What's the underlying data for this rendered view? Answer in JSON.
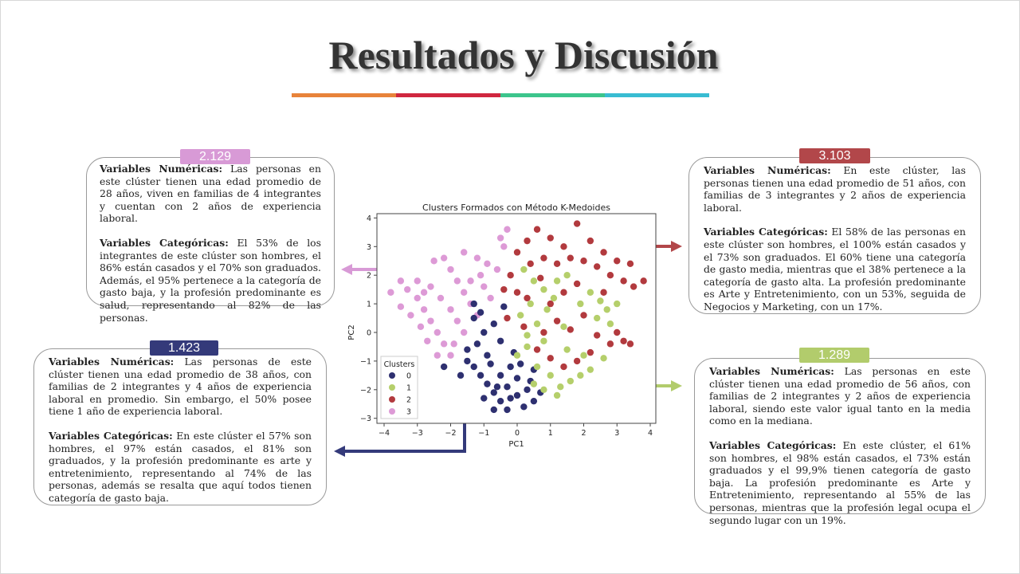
{
  "title": "Resultados y Discusión",
  "underline_colors": [
    "#e8833a",
    "#d0273f",
    "#3cc58c",
    "#38bcd2"
  ],
  "clusters": [
    {
      "id": "pink",
      "badge": "2.129",
      "color": "#d89ad6",
      "num_label": "Variables Numéricas:",
      "num_text": " Las personas en este clúster tienen una edad promedio de 28 años, viven en familias de 4 integrantes y cuentan con 2 años de experiencia laboral.",
      "cat_label": "Variables Categóricas:",
      "cat_text": " El 53% de los integrantes de este clúster son hombres, el 86% están casados y el 70% son graduados. Además, el 95% pertenece a la categoría de gasto baja, y la profesión predominante es salud, representando al 82% de las personas."
    },
    {
      "id": "navy",
      "badge": "1.423",
      "color": "#343a7a",
      "num_label": "Variables Numéricas:",
      "num_text": " Las personas de este clúster tienen una edad promedio de 38 años, con familias de 2 integrantes y 4 años de experiencia laboral en promedio. Sin embargo, el 50% posee tiene 1 año de experiencia laboral.",
      "cat_label": "Variables Categóricas:",
      "cat_text": " En este clúster el 57% son hombres, el 97% están casados, el 81% son graduados, y la profesión predominante es arte y entretenimiento, representando al 74% de las personas, además se resalta que aquí todos tienen categoría de gasto baja."
    },
    {
      "id": "red",
      "badge": "3.103",
      "color": "#b2474a",
      "num_label": "Variables Numéricas:",
      "num_text": " En este clúster, las personas tienen una edad promedio de 51 años, con familias de 3 integrantes y 2 años de experiencia laboral.",
      "cat_label": "Variables Categóricas:",
      "cat_text": " El 58% de las personas en este clúster son hombres, el 100% están casados y el 73% son graduados. El 60% tiene una categoría de gasto media, mientras que el 38% pertenece a la categoría de gasto alta. La profesión predominante es Arte y Entretenimiento, con un 53%, seguida de Negocios y Marketing, con un 17%."
    },
    {
      "id": "green",
      "badge": "1.289",
      "color": "#b2cc6c",
      "num_label": "Variables Numéricas:",
      "num_text": " Las personas en este clúster tienen una edad promedio de 56 años, con familias de 2 integrantes y 2 años de experiencia laboral, siendo este valor igual tanto en la media como en la mediana.",
      "cat_label": "Variables Categóricas:",
      "cat_text": " En este clúster, el 61% son hombres, el 98% están casados, el 73% están graduados y el 99,9% tienen categoría de gasto baja. La profesión predominante es Arte y Entretenimiento, representando al 55% de las personas, mientras que la profesión legal ocupa el segundo lugar con un 19%."
    }
  ],
  "chart_data": {
    "type": "scatter",
    "title": "Clusters Formados con Método K-Medoides",
    "xlabel": "PC1",
    "ylabel": "PC2",
    "xlim": [
      -4.2,
      4.2
    ],
    "ylim": [
      -3.3,
      4.2
    ],
    "xticks": [
      -4,
      -3,
      -2,
      -1,
      0,
      1,
      2,
      3,
      4
    ],
    "yticks": [
      -3,
      -2,
      -1,
      0,
      1,
      2,
      3,
      4
    ],
    "legend": {
      "title": "Clusters",
      "placement": "lower-left",
      "labels": [
        "0",
        "1",
        "2",
        "3"
      ]
    },
    "series": [
      {
        "name": "3",
        "color": "#dd9ad6",
        "points": [
          [
            -3.8,
            1.4
          ],
          [
            -3.5,
            1.8
          ],
          [
            -3.3,
            1.5
          ],
          [
            -3.0,
            1.2
          ],
          [
            -2.8,
            0.8
          ],
          [
            -2.6,
            0.4
          ],
          [
            -2.4,
            0
          ],
          [
            -2.2,
            -0.4
          ],
          [
            -2.0,
            -0.8
          ],
          [
            -2.2,
            2.6
          ],
          [
            -2.5,
            2.5
          ],
          [
            -2.0,
            2.2
          ],
          [
            -1.8,
            1.8
          ],
          [
            -1.6,
            1.4
          ],
          [
            -1.4,
            1.0
          ],
          [
            -1.2,
            0.6
          ],
          [
            -1.6,
            2.8
          ],
          [
            -1.2,
            2.6
          ],
          [
            -0.9,
            2.4
          ],
          [
            -0.6,
            2.2
          ],
          [
            -0.4,
            3.0
          ],
          [
            -0.3,
            3.6
          ],
          [
            -0.5,
            3.3
          ],
          [
            -3.2,
            0.6
          ],
          [
            -2.9,
            0.2
          ],
          [
            -2.7,
            -0.3
          ],
          [
            -3.0,
            1.8
          ],
          [
            -2.6,
            1.6
          ],
          [
            -2.3,
            1.2
          ],
          [
            -2.0,
            0.8
          ],
          [
            -1.8,
            0.4
          ],
          [
            -1.6,
            0.0
          ],
          [
            -1.9,
            -0.4
          ],
          [
            -2.4,
            -0.8
          ],
          [
            -1.4,
            1.8
          ],
          [
            -1.0,
            1.6
          ],
          [
            -0.8,
            1.2
          ],
          [
            -2.8,
            1.4
          ],
          [
            -3.5,
            0.9
          ],
          [
            -1.1,
            2.0
          ]
        ]
      },
      {
        "name": "0",
        "color": "#2e3070",
        "points": [
          [
            -2.2,
            -1.2
          ],
          [
            -1.7,
            -1.5
          ],
          [
            -1.5,
            -1.0
          ],
          [
            -1.3,
            -1.2
          ],
          [
            -1.1,
            -1.5
          ],
          [
            -0.9,
            -1.8
          ],
          [
            -0.7,
            -2.1
          ],
          [
            -0.5,
            -2.4
          ],
          [
            -0.3,
            -2.7
          ],
          [
            -0.7,
            -2.7
          ],
          [
            -1.0,
            -2.3
          ],
          [
            -0.3,
            -1.9
          ],
          [
            0,
            -2.2
          ],
          [
            0.3,
            -2.0
          ],
          [
            0.5,
            -2.4
          ],
          [
            0.2,
            -2.6
          ],
          [
            -0.5,
            -1.5
          ],
          [
            -0.2,
            -1.2
          ],
          [
            0,
            -1.6
          ],
          [
            -0.9,
            -0.8
          ],
          [
            -1.2,
            -0.4
          ],
          [
            -1.0,
            0
          ],
          [
            -1.3,
            0.5
          ],
          [
            -0.7,
            0.3
          ],
          [
            -0.5,
            -0.3
          ],
          [
            -0.4,
            0.9
          ],
          [
            -1.3,
            1.0
          ],
          [
            -0.8,
            -1.1
          ],
          [
            -1.5,
            -0.6
          ],
          [
            0.4,
            -1.7
          ],
          [
            0.7,
            -2.1
          ],
          [
            -0.1,
            -0.7
          ],
          [
            0.1,
            -1.1
          ],
          [
            -0.6,
            -1.9
          ],
          [
            -0.2,
            -2.3
          ],
          [
            0.5,
            -1.3
          ],
          [
            -1.1,
            0.7
          ]
        ]
      },
      {
        "name": "2",
        "color": "#b23a3e",
        "points": [
          [
            0,
            2.8
          ],
          [
            0.3,
            3.2
          ],
          [
            0.6,
            3.6
          ],
          [
            1.0,
            3.3
          ],
          [
            1.4,
            3.0
          ],
          [
            1.8,
            3.8
          ],
          [
            2.2,
            3.2
          ],
          [
            2.6,
            2.8
          ],
          [
            3.0,
            2.5
          ],
          [
            3.4,
            2.4
          ],
          [
            3.8,
            1.8
          ],
          [
            3.5,
            1.6
          ],
          [
            3.2,
            1.8
          ],
          [
            2.8,
            2.0
          ],
          [
            2.4,
            2.3
          ],
          [
            2.0,
            2.5
          ],
          [
            1.6,
            2.6
          ],
          [
            1.2,
            2.4
          ],
          [
            0.8,
            2.6
          ],
          [
            0.4,
            2.4
          ],
          [
            -0.2,
            2.0
          ],
          [
            0,
            1.4
          ],
          [
            0.3,
            1.2
          ],
          [
            0.7,
            1.9
          ],
          [
            1.0,
            1.0
          ],
          [
            1.4,
            1.4
          ],
          [
            1.8,
            1.7
          ],
          [
            2.0,
            0.6
          ],
          [
            2.4,
            -0.1
          ],
          [
            2.8,
            -0.4
          ],
          [
            3.2,
            -0.3
          ],
          [
            3.4,
            -0.4
          ],
          [
            2.2,
            -0.7
          ],
          [
            1.8,
            -1.0
          ],
          [
            1.4,
            -1.2
          ],
          [
            1.0,
            -0.9
          ],
          [
            0.6,
            -0.6
          ],
          [
            0.2,
            0.2
          ],
          [
            -0.3,
            0.5
          ],
          [
            -0.4,
            1.5
          ],
          [
            1.2,
            0.4
          ],
          [
            1.6,
            0.1
          ],
          [
            0.8,
            0.0
          ],
          [
            2.6,
            1.4
          ],
          [
            3.0,
            0.0
          ]
        ]
      },
      {
        "name": "1",
        "color": "#b5cf6b",
        "points": [
          [
            0,
            -0.8
          ],
          [
            0.3,
            -0.5
          ],
          [
            0.6,
            -1.2
          ],
          [
            1.0,
            -1.5
          ],
          [
            1.3,
            -1.9
          ],
          [
            1.6,
            -1.7
          ],
          [
            1.9,
            -1.5
          ],
          [
            2.2,
            -1.3
          ],
          [
            0.8,
            -2.0
          ],
          [
            1.2,
            -2.2
          ],
          [
            0.5,
            -1.8
          ],
          [
            2.4,
            0.5
          ],
          [
            2.7,
            0.8
          ],
          [
            3.0,
            1.0
          ],
          [
            2.5,
            1.1
          ],
          [
            2.8,
            0.3
          ],
          [
            2.2,
            1.4
          ],
          [
            0.2,
            2.2
          ],
          [
            0.5,
            1.8
          ],
          [
            0.8,
            1.5
          ],
          [
            1.2,
            1.8
          ],
          [
            1.5,
            2.0
          ],
          [
            0.4,
            1.0
          ],
          [
            0.9,
            0.8
          ],
          [
            0.1,
            0.6
          ],
          [
            0.6,
            0.3
          ],
          [
            1.4,
            0.2
          ],
          [
            0.8,
            -0.3
          ],
          [
            2.0,
            -0.8
          ],
          [
            1.5,
            -0.6
          ],
          [
            2.6,
            -0.9
          ],
          [
            0.3,
            -0.1
          ],
          [
            1.1,
            1.2
          ],
          [
            1.9,
            1.0
          ]
        ]
      }
    ]
  }
}
